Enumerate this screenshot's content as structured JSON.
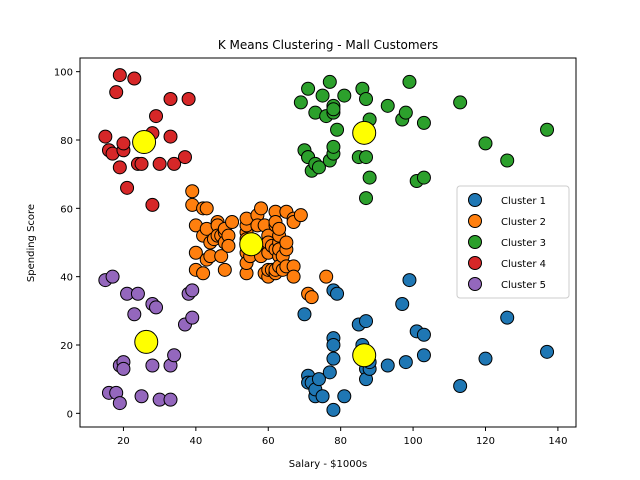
{
  "chart_data": {
    "type": "scatter",
    "title": "K Means Clustering - Mall Customers",
    "xlabel": "Salary - $1000s",
    "ylabel": "Spending Score",
    "xlim": [
      8,
      145
    ],
    "ylim": [
      -4,
      104
    ],
    "xticks": [
      20,
      40,
      60,
      80,
      100,
      120,
      140
    ],
    "yticks": [
      0,
      20,
      40,
      60,
      80,
      100
    ],
    "grid": false,
    "legend_position": "right",
    "series": [
      {
        "name": "Cluster 1",
        "color": "#1f77b4",
        "points": [
          [
            70,
            29
          ],
          [
            71,
            11
          ],
          [
            71,
            9
          ],
          [
            72,
            9
          ],
          [
            73,
            5
          ],
          [
            73,
            7
          ],
          [
            74,
            10
          ],
          [
            75,
            5
          ],
          [
            77,
            12
          ],
          [
            78,
            36
          ],
          [
            78,
            22
          ],
          [
            78,
            20
          ],
          [
            78,
            16
          ],
          [
            78,
            1
          ],
          [
            79,
            35
          ],
          [
            81,
            5
          ],
          [
            85,
            26
          ],
          [
            86,
            20
          ],
          [
            87,
            27
          ],
          [
            87,
            13
          ],
          [
            87,
            10
          ],
          [
            88,
            13
          ],
          [
            88,
            15
          ],
          [
            93,
            14
          ],
          [
            97,
            32
          ],
          [
            98,
            15
          ],
          [
            99,
            39
          ],
          [
            101,
            24
          ],
          [
            103,
            17
          ],
          [
            103,
            23
          ],
          [
            113,
            8
          ],
          [
            120,
            16
          ],
          [
            126,
            28
          ],
          [
            137,
            18
          ]
        ]
      },
      {
        "name": "Cluster 2",
        "color": "#ff7f0e",
        "points": [
          [
            39,
            65
          ],
          [
            39,
            61
          ],
          [
            40,
            55
          ],
          [
            40,
            47
          ],
          [
            40,
            42
          ],
          [
            42,
            60
          ],
          [
            42,
            52
          ],
          [
            42,
            41
          ],
          [
            43,
            60
          ],
          [
            43,
            54
          ],
          [
            43,
            45
          ],
          [
            44,
            50
          ],
          [
            44,
            46
          ],
          [
            45,
            51
          ],
          [
            46,
            56
          ],
          [
            46,
            55
          ],
          [
            46,
            52
          ],
          [
            47,
            46
          ],
          [
            47,
            52
          ],
          [
            48,
            53
          ],
          [
            48,
            42
          ],
          [
            48,
            50
          ],
          [
            48,
            54
          ],
          [
            49,
            52
          ],
          [
            49,
            49
          ],
          [
            50,
            56
          ],
          [
            54,
            47
          ],
          [
            54,
            53
          ],
          [
            54,
            51
          ],
          [
            54,
            55
          ],
          [
            54,
            41
          ],
          [
            54,
            44
          ],
          [
            54,
            57
          ],
          [
            55,
            46
          ],
          [
            57,
            58
          ],
          [
            57,
            55
          ],
          [
            58,
            60
          ],
          [
            58,
            46
          ],
          [
            59,
            55
          ],
          [
            59,
            41
          ],
          [
            60,
            49
          ],
          [
            60,
            40
          ],
          [
            60,
            42
          ],
          [
            60,
            52
          ],
          [
            60,
            47
          ],
          [
            60,
            50
          ],
          [
            61,
            42
          ],
          [
            61,
            49
          ],
          [
            62,
            41
          ],
          [
            62,
            48
          ],
          [
            62,
            59
          ],
          [
            62,
            55
          ],
          [
            62,
            56
          ],
          [
            62,
            42
          ],
          [
            63,
            50
          ],
          [
            63,
            46
          ],
          [
            63,
            43
          ],
          [
            63,
            48
          ],
          [
            63,
            52
          ],
          [
            63,
            54
          ],
          [
            64,
            42
          ],
          [
            64,
            46
          ],
          [
            65,
            48
          ],
          [
            65,
            50
          ],
          [
            65,
            43
          ],
          [
            65,
            59
          ],
          [
            67,
            43
          ],
          [
            67,
            57
          ],
          [
            67,
            56
          ],
          [
            67,
            40
          ],
          [
            69,
            58
          ],
          [
            71,
            35
          ],
          [
            72,
            34
          ],
          [
            76,
            40
          ]
        ]
      },
      {
        "name": "Cluster 3",
        "color": "#2ca02c",
        "points": [
          [
            69,
            91
          ],
          [
            70,
            77
          ],
          [
            71,
            95
          ],
          [
            71,
            75
          ],
          [
            71,
            75
          ],
          [
            72,
            71
          ],
          [
            73,
            88
          ],
          [
            73,
            73
          ],
          [
            74,
            72
          ],
          [
            75,
            93
          ],
          [
            76,
            87
          ],
          [
            77,
            97
          ],
          [
            77,
            74
          ],
          [
            78,
            90
          ],
          [
            78,
            88
          ],
          [
            78,
            76
          ],
          [
            78,
            89
          ],
          [
            78,
            78
          ],
          [
            79,
            83
          ],
          [
            81,
            93
          ],
          [
            85,
            75
          ],
          [
            86,
            95
          ],
          [
            87,
            63
          ],
          [
            87,
            75
          ],
          [
            87,
            92
          ],
          [
            88,
            86
          ],
          [
            88,
            69
          ],
          [
            93,
            90
          ],
          [
            97,
            86
          ],
          [
            98,
            88
          ],
          [
            99,
            97
          ],
          [
            101,
            68
          ],
          [
            103,
            85
          ],
          [
            103,
            69
          ],
          [
            113,
            91
          ],
          [
            120,
            79
          ],
          [
            126,
            74
          ],
          [
            137,
            83
          ]
        ]
      },
      {
        "name": "Cluster 4",
        "color": "#d62728",
        "points": [
          [
            15,
            81
          ],
          [
            16,
            77
          ],
          [
            17,
            76
          ],
          [
            18,
            94
          ],
          [
            19,
            72
          ],
          [
            19,
            99
          ],
          [
            20,
            77
          ],
          [
            20,
            79
          ],
          [
            21,
            66
          ],
          [
            23,
            98
          ],
          [
            24,
            73
          ],
          [
            25,
            73
          ],
          [
            28,
            82
          ],
          [
            28,
            61
          ],
          [
            29,
            87
          ],
          [
            30,
            73
          ],
          [
            33,
            92
          ],
          [
            33,
            81
          ],
          [
            34,
            73
          ],
          [
            37,
            75
          ],
          [
            38,
            92
          ]
        ]
      },
      {
        "name": "Cluster 5",
        "color": "#9467bd",
        "points": [
          [
            15,
            39
          ],
          [
            16,
            6
          ],
          [
            17,
            40
          ],
          [
            18,
            6
          ],
          [
            19,
            3
          ],
          [
            19,
            14
          ],
          [
            20,
            15
          ],
          [
            20,
            13
          ],
          [
            21,
            35
          ],
          [
            23,
            29
          ],
          [
            24,
            35
          ],
          [
            25,
            5
          ],
          [
            28,
            14
          ],
          [
            28,
            32
          ],
          [
            29,
            31
          ],
          [
            30,
            4
          ],
          [
            33,
            4
          ],
          [
            33,
            14
          ],
          [
            34,
            17
          ],
          [
            37,
            26
          ],
          [
            38,
            35
          ],
          [
            39,
            36
          ],
          [
            39,
            28
          ]
        ]
      }
    ],
    "centroids": {
      "color": "#ffff00",
      "points": [
        [
          86.5,
          17
        ],
        [
          55.3,
          49.5
        ],
        [
          86.5,
          82.1
        ],
        [
          25.7,
          79.4
        ],
        [
          26.3,
          20.9
        ]
      ]
    }
  }
}
